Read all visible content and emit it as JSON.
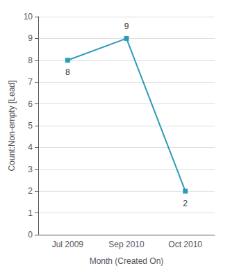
{
  "chart_data": {
    "type": "line",
    "xlabel": "Month (Created On)",
    "ylabel": "Count:Non-empty [Lead]",
    "categories": [
      "Jul 2009",
      "Sep 2010",
      "Oct 2010"
    ],
    "values": [
      8,
      9,
      2
    ],
    "color": "#2b9cb8",
    "marker": "square",
    "ylim": [
      0,
      10
    ],
    "yticks": [
      0,
      1,
      2,
      3,
      4,
      5,
      6,
      7,
      8,
      9,
      10
    ],
    "grid": true,
    "data_labels": true
  }
}
